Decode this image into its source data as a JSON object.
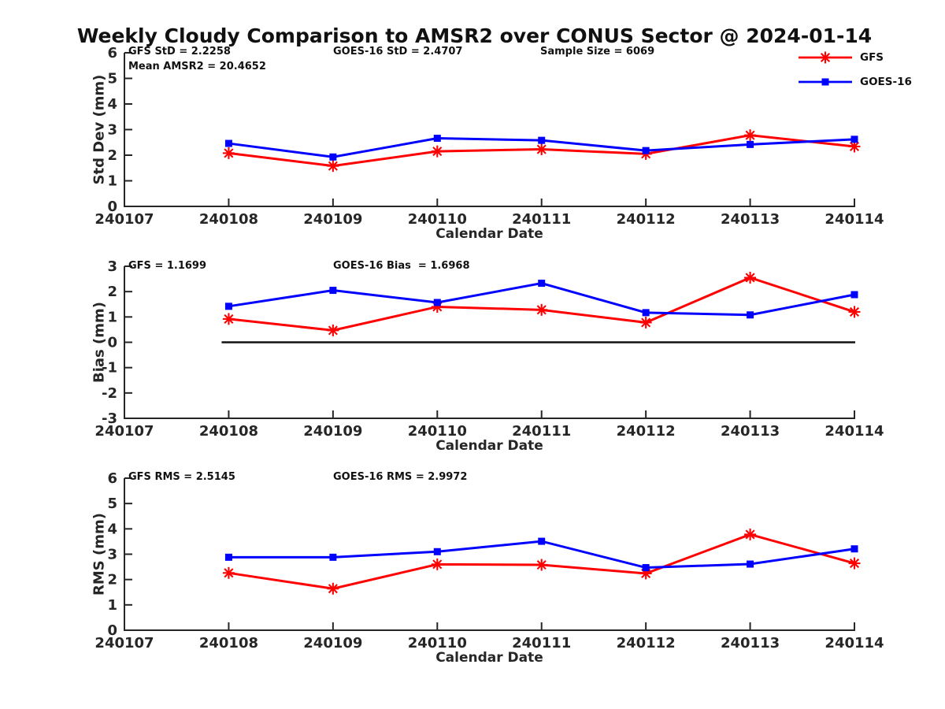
{
  "title": "Weekly Cloudy Comparison to AMSR2 over CONUS Sector @ 2024-01-14",
  "colors": {
    "gfs": "#ff0000",
    "goes16": "#0000ff",
    "axis": "#262626",
    "zero_line": "#111111"
  },
  "legend": {
    "items": [
      {
        "label": "GFS",
        "color": "#ff0000",
        "marker": "asterisk"
      },
      {
        "label": "GOES-16",
        "color": "#0000ff",
        "marker": "square"
      }
    ]
  },
  "chart_data": [
    {
      "type": "line",
      "name": "std-dev",
      "ylabel": "Std Dev (mm)",
      "xlabel": "Calendar Date",
      "ylim": [
        0,
        6
      ],
      "yticks": [
        0,
        1,
        2,
        3,
        4,
        5,
        6
      ],
      "xticklabels": [
        "240107",
        "240108",
        "240109",
        "240110",
        "240111",
        "240112",
        "240113",
        "240114"
      ],
      "zero_line": false,
      "annotations": [
        "GFS StD = 2.2258",
        "Mean AMSR2 = 20.4652",
        "GOES-16 StD = 2.4707",
        "Sample Size = 6069"
      ],
      "series": [
        {
          "name": "GFS",
          "color": "#ff0000",
          "marker": "asterisk",
          "x": [
            "240108",
            "240109",
            "240110",
            "240111",
            "240112",
            "240113",
            "240114"
          ],
          "values": [
            2.08,
            1.58,
            2.15,
            2.23,
            2.05,
            2.78,
            2.34
          ]
        },
        {
          "name": "GOES-16",
          "color": "#0000ff",
          "marker": "square",
          "x": [
            "240108",
            "240109",
            "240110",
            "240111",
            "240112",
            "240113",
            "240114"
          ],
          "values": [
            2.46,
            1.93,
            2.66,
            2.58,
            2.18,
            2.42,
            2.62
          ]
        }
      ]
    },
    {
      "type": "line",
      "name": "bias",
      "ylabel": "Bias (mm)",
      "xlabel": "Calendar Date",
      "ylim": [
        -3,
        3
      ],
      "yticks": [
        -3,
        -2,
        -1,
        0,
        1,
        2,
        3
      ],
      "xticklabels": [
        "240107",
        "240108",
        "240109",
        "240110",
        "240111",
        "240112",
        "240113",
        "240114"
      ],
      "zero_line": true,
      "annotations": [
        "GFS = 1.1699",
        "GOES-16 Bias  = 1.6968"
      ],
      "series": [
        {
          "name": "GFS",
          "color": "#ff0000",
          "marker": "asterisk",
          "x": [
            "240108",
            "240109",
            "240110",
            "240111",
            "240112",
            "240113",
            "240114"
          ],
          "values": [
            0.92,
            0.47,
            1.4,
            1.28,
            0.78,
            2.55,
            1.2
          ]
        },
        {
          "name": "GOES-16",
          "color": "#0000ff",
          "marker": "square",
          "x": [
            "240108",
            "240109",
            "240110",
            "240111",
            "240112",
            "240113",
            "240114"
          ],
          "values": [
            1.42,
            2.05,
            1.57,
            2.33,
            1.17,
            1.08,
            1.88
          ]
        }
      ]
    },
    {
      "type": "line",
      "name": "rms",
      "ylabel": "RMS (mm)",
      "xlabel": "Calendar Date",
      "ylim": [
        0,
        6
      ],
      "yticks": [
        0,
        1,
        2,
        3,
        4,
        5,
        6
      ],
      "xticklabels": [
        "240107",
        "240108",
        "240109",
        "240110",
        "240111",
        "240112",
        "240113",
        "240114"
      ],
      "zero_line": false,
      "annotations": [
        "GFS RMS = 2.5145",
        "GOES-16 RMS = 2.9972"
      ],
      "series": [
        {
          "name": "GFS",
          "color": "#ff0000",
          "marker": "asterisk",
          "x": [
            "240108",
            "240109",
            "240110",
            "240111",
            "240112",
            "240113",
            "240114"
          ],
          "values": [
            2.26,
            1.64,
            2.6,
            2.58,
            2.24,
            3.78,
            2.64
          ]
        },
        {
          "name": "GOES-16",
          "color": "#0000ff",
          "marker": "square",
          "x": [
            "240108",
            "240109",
            "240110",
            "240111",
            "240112",
            "240113",
            "240114"
          ],
          "values": [
            2.88,
            2.88,
            3.1,
            3.51,
            2.47,
            2.61,
            3.21
          ]
        }
      ]
    }
  ]
}
